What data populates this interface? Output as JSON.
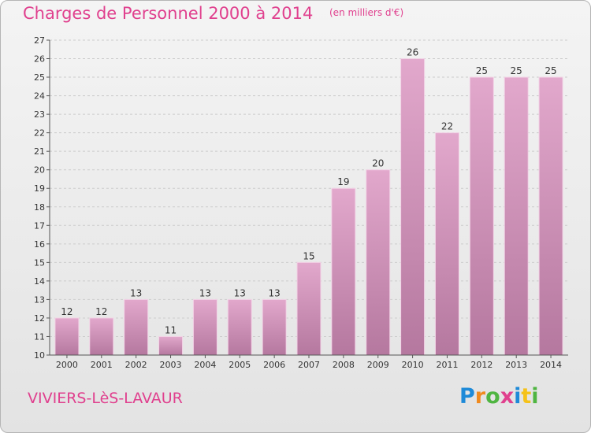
{
  "header": {
    "title": "Charges de Personnel 2000 à 2014",
    "subtitle": "(en milliers d'€)"
  },
  "footer": {
    "commune": "VIVIERS-LèS-LAVAUR",
    "logo_letters": [
      "P",
      "r",
      "o",
      "x",
      "i",
      "t",
      "i"
    ]
  },
  "colors": {
    "title": "#e0408e",
    "bar_top": "#e2a8cc",
    "bar_bottom": "#b5789f",
    "grid": "#cccccc",
    "axis": "#555555"
  },
  "chart_data": {
    "type": "bar",
    "title": "Charges de Personnel 2000 à 2014",
    "subtitle": "(en milliers d'€)",
    "categories": [
      "2000",
      "2001",
      "2002",
      "2003",
      "2004",
      "2005",
      "2006",
      "2007",
      "2008",
      "2009",
      "2010",
      "2011",
      "2012",
      "2013",
      "2014"
    ],
    "values": [
      12,
      12,
      13,
      11,
      13,
      13,
      13,
      15,
      19,
      20,
      26,
      22,
      25,
      25,
      25
    ],
    "ylim": [
      10,
      27
    ],
    "yticks": [
      10,
      11,
      12,
      13,
      14,
      15,
      16,
      17,
      18,
      19,
      20,
      21,
      22,
      23,
      24,
      25,
      26,
      27
    ],
    "grid": true,
    "xlabel": "",
    "ylabel": ""
  }
}
